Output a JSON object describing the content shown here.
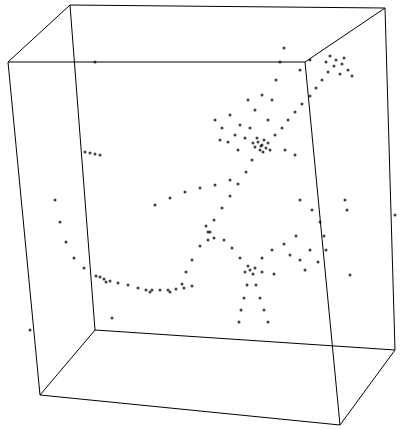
{
  "chart_data": {
    "type": "scatter",
    "x": [
      262,
      258,
      266,
      260,
      264,
      255,
      268,
      261,
      257,
      270,
      263,
      253,
      275,
      282,
      288,
      295,
      302,
      310,
      316,
      322,
      328,
      334,
      330,
      336,
      342,
      348,
      352,
      340,
      326,
      344,
      268,
      272,
      276,
      280,
      284,
      300,
      310,
      215,
      222,
      230,
      235,
      228,
      240,
      245,
      220,
      238,
      250,
      255,
      248,
      262,
      252,
      246,
      238,
      230,
      222,
      214,
      208,
      200,
      192,
      186,
      182,
      155,
      170,
      185,
      200,
      215,
      230,
      206,
      210,
      214,
      208,
      55,
      60,
      66,
      74,
      84,
      96,
      104,
      110,
      118,
      128,
      138,
      146,
      152,
      160,
      168,
      176,
      184,
      192,
      100,
      106,
      150,
      170,
      85,
      90,
      95,
      100,
      250,
      248,
      253,
      245,
      255,
      240,
      232,
      224,
      262,
      272,
      284,
      296,
      247,
      244,
      241,
      239,
      256,
      260,
      264,
      268,
      262,
      274,
      290,
      300,
      310,
      318,
      305,
      300,
      312,
      320,
      324,
      326,
      345,
      347,
      395,
      30,
      112,
      95,
      350,
      285,
      295
    ],
    "values": [
      145,
      142,
      148,
      150,
      140,
      147,
      143,
      146,
      138,
      150,
      152,
      143,
      135,
      128,
      120,
      112,
      104,
      96,
      88,
      80,
      72,
      66,
      56,
      60,
      64,
      70,
      76,
      74,
      62,
      58,
      120,
      100,
      80,
      62,
      48,
      70,
      60,
      120,
      128,
      115,
      135,
      142,
      125,
      138,
      140,
      150,
      128,
      110,
      100,
      95,
      160,
      172,
      184,
      196,
      208,
      220,
      232,
      246,
      260,
      272,
      284,
      205,
      198,
      192,
      188,
      185,
      180,
      226,
      232,
      238,
      240,
      200,
      222,
      242,
      258,
      268,
      276,
      279,
      281,
      283,
      285,
      288,
      290,
      290,
      290,
      290,
      289,
      288,
      286,
      277,
      282,
      292,
      292,
      152,
      153,
      154,
      155,
      270,
      266,
      274,
      272,
      268,
      258,
      248,
      240,
      258,
      250,
      244,
      236,
      285,
      298,
      310,
      322,
      285,
      298,
      310,
      322,
      272,
      274,
      255,
      260,
      250,
      262,
      270,
      200,
      210,
      222,
      236,
      250,
      200,
      210,
      215,
      330,
      318,
      62,
      275,
      150,
      155
    ],
    "xlim": [
      0,
      402
    ],
    "ylim": [
      430,
      0
    ],
    "tick_labels": false,
    "grid": false,
    "color": "#000000",
    "marker": "circle"
  }
}
